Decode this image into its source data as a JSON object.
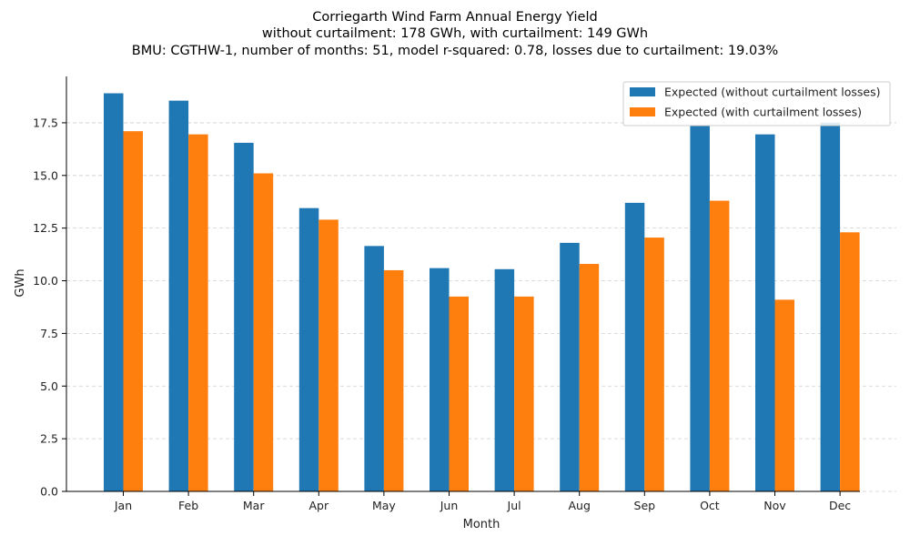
{
  "chart_data": {
    "type": "bar",
    "title": "Corriegarth Wind Farm Annual Energy Yield",
    "subtitle_lines": [
      "without curtailment: 178 GWh, with curtailment: 149 GWh",
      "BMU: CGTHW-1, number of months: 51, model r-squared: 0.78, losses due to curtailment: 19.03%"
    ],
    "xlabel": "Month",
    "ylabel": "GWh",
    "categories": [
      "Jan",
      "Feb",
      "Mar",
      "Apr",
      "May",
      "Jun",
      "Jul",
      "Aug",
      "Sep",
      "Oct",
      "Nov",
      "Dec"
    ],
    "ylim": [
      0,
      19.7
    ],
    "yticks": [
      0.0,
      2.5,
      5.0,
      7.5,
      10.0,
      12.5,
      15.0,
      17.5
    ],
    "ytick_labels": [
      "0.0",
      "2.5",
      "5.0",
      "7.5",
      "10.0",
      "12.5",
      "15.0",
      "17.5"
    ],
    "grid": true,
    "legend_position": "top-right",
    "series": [
      {
        "name": "Expected (without curtailment losses)",
        "color": "#1f77b4",
        "values": [
          18.9,
          18.55,
          16.55,
          13.45,
          11.65,
          10.6,
          10.55,
          11.8,
          13.7,
          17.35,
          16.95,
          17.5
        ]
      },
      {
        "name": "Expected (with curtailment losses)",
        "color": "#ff7f0e",
        "values": [
          17.1,
          16.95,
          15.1,
          12.9,
          10.5,
          9.25,
          9.25,
          10.8,
          12.05,
          13.8,
          9.1,
          12.3
        ]
      }
    ]
  }
}
